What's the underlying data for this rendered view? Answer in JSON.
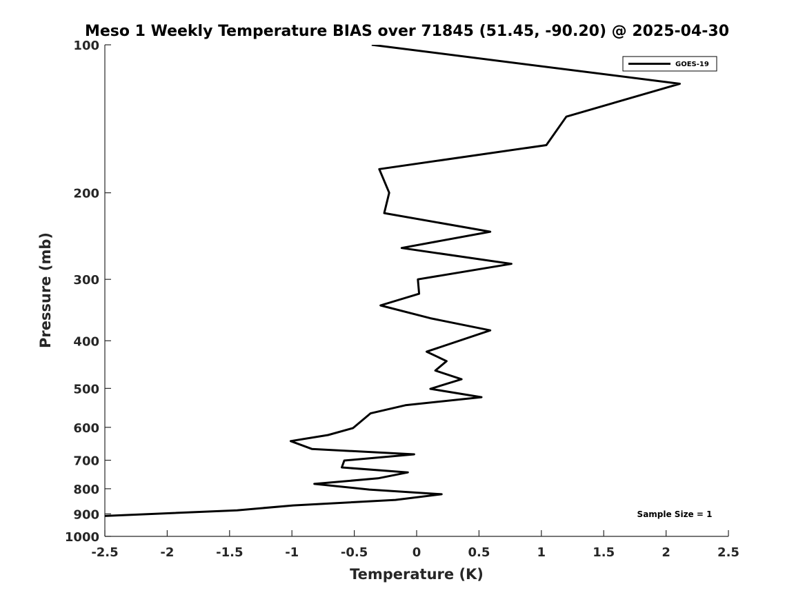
{
  "chart_data": {
    "type": "line",
    "title": "Meso 1 Weekly Temperature BIAS over 71845 (51.45, -90.20) @ 2025-04-30",
    "xlabel": "Temperature (K)",
    "ylabel": "Pressure (mb)",
    "xlim": [
      -2.5,
      2.5
    ],
    "ylim": [
      100,
      1000
    ],
    "yscale": "log",
    "yreversed": true,
    "grid": false,
    "xticks": [
      -2.5,
      -2,
      -1.5,
      -1,
      -0.5,
      0,
      0.5,
      1,
      1.5,
      2,
      2.5
    ],
    "xtick_labels": [
      "-2.5",
      "-2",
      "-1.5",
      "-1",
      "-0.5",
      "0",
      "0.5",
      "1",
      "1.5",
      "2",
      "2.5"
    ],
    "yticks": [
      100,
      200,
      300,
      400,
      500,
      600,
      700,
      800,
      900,
      1000
    ],
    "ytick_labels": [
      "100",
      "200",
      "300",
      "400",
      "500",
      "600",
      "700",
      "800",
      "900",
      "1000"
    ],
    "legend": {
      "placement": "top-right",
      "entries": [
        "GOES-19"
      ]
    },
    "annotation": "Sample Size = 1",
    "series": [
      {
        "name": "GOES-19",
        "color": "#000000",
        "temperature": [
          -0.36,
          2.11,
          1.2,
          1.04,
          -0.3,
          -0.22,
          -0.26,
          0.59,
          -0.12,
          0.76,
          0.01,
          0.02,
          -0.29,
          0.11,
          0.59,
          0.08,
          0.24,
          0.15,
          0.36,
          0.11,
          0.52,
          -0.09,
          -0.37,
          -0.51,
          -0.71,
          -1.01,
          -0.84,
          -0.02,
          -0.58,
          -0.6,
          -0.07,
          -0.31,
          -0.82,
          -0.38,
          0.2,
          -0.17,
          -0.99,
          -1.44,
          -2.6
        ],
        "pressure": [
          100,
          120,
          140,
          160,
          179,
          200,
          220,
          240,
          259,
          279,
          300,
          321,
          339,
          360,
          381,
          421,
          440,
          460,
          479,
          501,
          521,
          541,
          562,
          602,
          622,
          640,
          664,
          681,
          701,
          724,
          741,
          762,
          782,
          803,
          821,
          843,
          865,
          885,
          911
        ]
      }
    ]
  }
}
